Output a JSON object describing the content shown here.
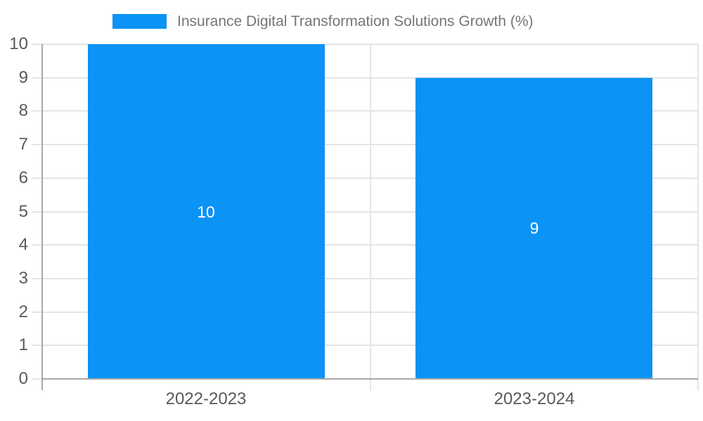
{
  "chart_data": {
    "type": "bar",
    "categories": [
      "2022-2023",
      "2023-2024"
    ],
    "series": [
      {
        "name": "Insurance Digital Transformation Solutions Growth (%)",
        "values": [
          10,
          9
        ]
      }
    ],
    "value_labels": [
      "10",
      "9"
    ],
    "xlabel": "",
    "ylabel": "",
    "ylim": [
      0,
      10
    ],
    "yticks": [
      0,
      1,
      2,
      3,
      4,
      5,
      6,
      7,
      8,
      9,
      10
    ],
    "grid": true,
    "legend": {
      "position": "top",
      "label": "Insurance Digital Transformation Solutions Growth (%)"
    },
    "colors": {
      "bar": "#0b93f5",
      "axis_line": "#a8a8a8",
      "gridline": "#e4e4e4",
      "tick_label": "#595959",
      "legend_text": "#757575",
      "bar_label": "#ffffff",
      "background": "#ffffff"
    }
  }
}
